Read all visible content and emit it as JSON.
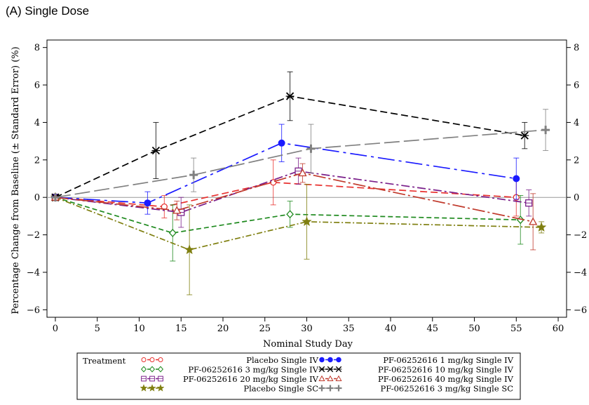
{
  "panel_title": "(A) Single Dose",
  "chart_data": {
    "type": "line",
    "xlabel": "Nominal Study Day",
    "ylabel": "Percentage Change from Baseline (± Standard Error) (%)",
    "xlim": [
      -1,
      61
    ],
    "ylim": [
      -6.4,
      8.4
    ],
    "x_ticks": [
      0,
      5,
      10,
      15,
      20,
      25,
      30,
      35,
      40,
      45,
      50,
      55,
      60
    ],
    "y_ticks": [
      -6,
      -4,
      -2,
      0,
      2,
      4,
      6,
      8
    ],
    "reference_line_y": 0,
    "legend_title": "Treatment",
    "legend_position": "bottom",
    "series": [
      {
        "name": "Placebo Single IV",
        "color": "#e8312f",
        "marker": "open-circle",
        "dash": "10,5",
        "points": [
          {
            "x": 0,
            "y": 0,
            "lo": 0,
            "hi": 0
          },
          {
            "x": 13,
            "y": -0.5,
            "lo": -1.1,
            "hi": 0.1
          },
          {
            "x": 26,
            "y": 0.8,
            "lo": -0.4,
            "hi": 2.0
          },
          {
            "x": 55,
            "y": 0.0,
            "lo": -1.0,
            "hi": 1.0
          }
        ]
      },
      {
        "name": "PF-06252616 3 mg/kg Single IV",
        "color": "#1f8a1f",
        "marker": "open-diamond",
        "dash": "7,4",
        "points": [
          {
            "x": 0,
            "y": 0,
            "lo": 0,
            "hi": 0
          },
          {
            "x": 14,
            "y": -1.9,
            "lo": -3.4,
            "hi": -0.4
          },
          {
            "x": 28,
            "y": -0.9,
            "lo": -1.6,
            "hi": -0.2
          },
          {
            "x": 55.5,
            "y": -1.2,
            "lo": -2.5,
            "hi": 0.1
          }
        ]
      },
      {
        "name": "PF-06252616 20 mg/kg Single IV",
        "color": "#7a1f8a",
        "marker": "open-square",
        "dash": "12,4,3,4",
        "points": [
          {
            "x": 0,
            "y": 0,
            "lo": 0,
            "hi": 0
          },
          {
            "x": 15,
            "y": -0.8,
            "lo": -1.6,
            "hi": 0.0
          },
          {
            "x": 29,
            "y": 1.4,
            "lo": 0.7,
            "hi": 2.1
          },
          {
            "x": 56.5,
            "y": -0.3,
            "lo": -1.0,
            "hi": 0.4
          }
        ]
      },
      {
        "name": "Placebo Single SC",
        "color": "#7f7f10",
        "marker": "star",
        "dash": "8,3,2,3",
        "points": [
          {
            "x": 0,
            "y": 0,
            "lo": 0,
            "hi": 0
          },
          {
            "x": 16,
            "y": -2.8,
            "lo": -5.2,
            "hi": -0.4
          },
          {
            "x": 30,
            "y": -1.3,
            "lo": -3.3,
            "hi": 0.7
          },
          {
            "x": 58,
            "y": -1.6,
            "lo": -1.9,
            "hi": -1.3
          }
        ]
      },
      {
        "name": "PF-06252616 1 mg/kg Single IV",
        "color": "#1a1aff",
        "marker": "filled-circle",
        "dash": "24,6,4,6",
        "points": [
          {
            "x": 0,
            "y": 0,
            "lo": 0,
            "hi": 0
          },
          {
            "x": 11,
            "y": -0.3,
            "lo": -0.9,
            "hi": 0.3
          },
          {
            "x": 27,
            "y": 2.9,
            "lo": 1.9,
            "hi": 3.9
          },
          {
            "x": 55,
            "y": 1.0,
            "lo": -0.1,
            "hi": 2.1
          }
        ]
      },
      {
        "name": "PF-06252616 10 mg/kg Single IV",
        "color": "#000000",
        "marker": "x-star",
        "dash": "10,5",
        "points": [
          {
            "x": 0,
            "y": 0,
            "lo": 0,
            "hi": 0
          },
          {
            "x": 12,
            "y": 2.5,
            "lo": 1.0,
            "hi": 4.0
          },
          {
            "x": 28,
            "y": 5.4,
            "lo": 4.1,
            "hi": 6.7
          },
          {
            "x": 56,
            "y": 3.3,
            "lo": 2.6,
            "hi": 4.0
          }
        ]
      },
      {
        "name": "PF-06252616 40 mg/kg Single IV",
        "color": "#c0392b",
        "marker": "open-triangle",
        "dash": "18,4,3,4",
        "points": [
          {
            "x": 0,
            "y": 0,
            "lo": 0,
            "hi": 0
          },
          {
            "x": 14.5,
            "y": -0.7,
            "lo": -1.2,
            "hi": -0.2
          },
          {
            "x": 29.5,
            "y": 1.3,
            "lo": 0.8,
            "hi": 1.8
          },
          {
            "x": 57,
            "y": -1.3,
            "lo": -2.8,
            "hi": 0.2
          }
        ]
      },
      {
        "name": "PF-06252616 3 mg/kg Single SC",
        "color": "#808080",
        "marker": "plus",
        "dash": "22,6",
        "points": [
          {
            "x": 0,
            "y": 0,
            "lo": 0,
            "hi": 0
          },
          {
            "x": 16.5,
            "y": 1.2,
            "lo": 0.3,
            "hi": 2.1
          },
          {
            "x": 30.5,
            "y": 2.6,
            "lo": 1.3,
            "hi": 3.9
          },
          {
            "x": 58.5,
            "y": 3.6,
            "lo": 2.5,
            "hi": 4.7
          }
        ]
      }
    ],
    "legend_layout": [
      [
        0,
        4
      ],
      [
        1,
        5
      ],
      [
        2,
        6
      ],
      [
        3,
        7
      ]
    ]
  }
}
